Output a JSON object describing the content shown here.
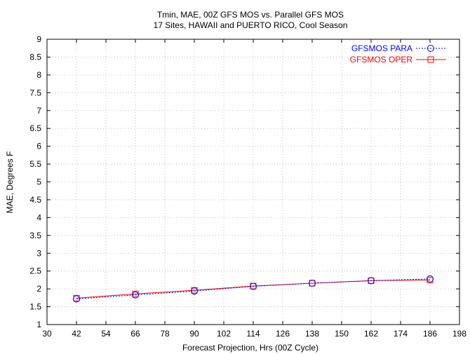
{
  "chart_data": {
    "type": "line",
    "title": "Tmin, MAE, 00Z GFS MOS vs. Parallel GFS MOS",
    "subtitle": "17 Sites, HAWAII and PUERTO RICO, Cool Season",
    "xlabel": "Forecast Projection, Hrs (00Z Cycle)",
    "ylabel": "MAE, Degrees F",
    "xlim": [
      30,
      198
    ],
    "ylim": [
      1,
      9
    ],
    "x_ticks": [
      30,
      42,
      54,
      66,
      78,
      90,
      102,
      114,
      126,
      138,
      150,
      162,
      174,
      186,
      198
    ],
    "y_ticks": [
      "1",
      "1.5",
      "2",
      "2.5",
      "3",
      "3.5",
      "4",
      "4.5",
      "5",
      "5.5",
      "6",
      "6.5",
      "7",
      "7.5",
      "8",
      "8.5",
      "9"
    ],
    "grid": true,
    "legend_position": "top-right",
    "x": [
      42,
      66,
      90,
      114,
      138,
      162,
      186
    ],
    "series": [
      {
        "name": "GFSMOS PARA",
        "color": "#0000ff",
        "marker": "circle",
        "line_style": "dotted",
        "values": [
          1.72,
          1.83,
          1.94,
          2.07,
          2.16,
          2.23,
          2.28
        ]
      },
      {
        "name": "GFSMOS OPER",
        "color": "#ff0000",
        "marker": "square",
        "line_style": "solid",
        "values": [
          1.74,
          1.86,
          1.96,
          2.08,
          2.16,
          2.23,
          2.25
        ]
      }
    ]
  }
}
